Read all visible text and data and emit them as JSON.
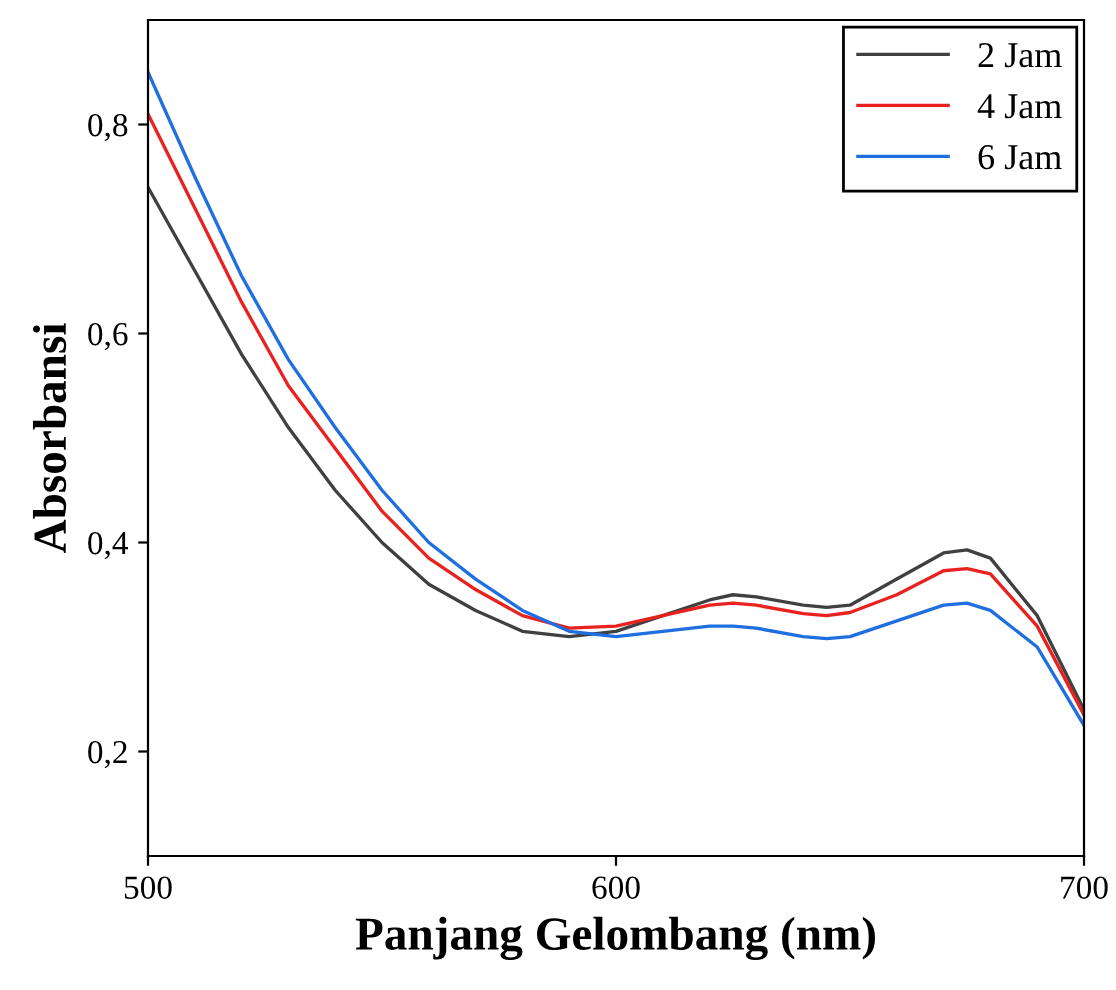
{
  "chart_data": {
    "type": "line",
    "xlabel": "Panjang Gelombang (nm)",
    "ylabel": "Absorbansi",
    "x": [
      500,
      510,
      520,
      530,
      540,
      550,
      560,
      570,
      580,
      590,
      600,
      610,
      620,
      625,
      630,
      640,
      645,
      650,
      660,
      670,
      675,
      680,
      690,
      700
    ],
    "series": [
      {
        "name": "2 Jam",
        "color": "#404040",
        "values": [
          0.74,
          0.66,
          0.58,
          0.51,
          0.45,
          0.4,
          0.36,
          0.335,
          0.315,
          0.31,
          0.315,
          0.33,
          0.345,
          0.35,
          0.348,
          0.34,
          0.338,
          0.34,
          0.365,
          0.39,
          0.393,
          0.385,
          0.33,
          0.24
        ]
      },
      {
        "name": "4 Jam",
        "color": "#e8221e",
        "values": [
          0.81,
          0.72,
          0.63,
          0.55,
          0.49,
          0.43,
          0.385,
          0.355,
          0.33,
          0.318,
          0.32,
          0.33,
          0.34,
          0.342,
          0.34,
          0.332,
          0.33,
          0.333,
          0.35,
          0.373,
          0.375,
          0.37,
          0.32,
          0.235
        ]
      },
      {
        "name": "6 Jam",
        "color": "#1f6fe0",
        "values": [
          0.85,
          0.75,
          0.655,
          0.575,
          0.51,
          0.45,
          0.4,
          0.365,
          0.335,
          0.315,
          0.31,
          0.315,
          0.32,
          0.32,
          0.318,
          0.31,
          0.308,
          0.31,
          0.325,
          0.34,
          0.342,
          0.335,
          0.3,
          0.225
        ]
      }
    ],
    "xlim": [
      500,
      700
    ],
    "xticks": [
      500,
      600,
      700
    ],
    "ylim": [
      0.1,
      0.9
    ],
    "yticks": [
      {
        "value": 0.2,
        "label": "0,2"
      },
      {
        "value": 0.4,
        "label": "0,4"
      },
      {
        "value": 0.6,
        "label": "0,6"
      },
      {
        "value": 0.8,
        "label": "0,8"
      }
    ],
    "legend": "top right",
    "grid": false,
    "marker": "none",
    "line_style": "solid"
  }
}
